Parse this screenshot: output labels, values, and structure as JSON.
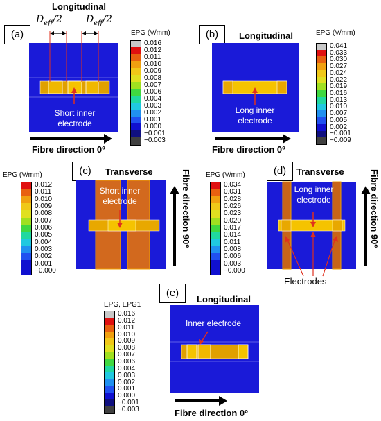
{
  "panels": [
    {
      "id": "a",
      "label": "(a)",
      "title": "Longitudinal",
      "annotation": "Short inner electrode",
      "fibre": "Fibre direction 0º",
      "legend_title": "EPG (V/mm)",
      "ticks": [
        "0.016",
        "0.012",
        "0.011",
        "0.010",
        "0.009",
        "0.008",
        "0.007",
        "0.006",
        "0.004",
        "0.003",
        "0.002",
        "0.001",
        "0.000",
        "−0.001",
        "−0.003"
      ]
    },
    {
      "id": "b",
      "label": "(b)",
      "title": "Longitudinal",
      "annotation": "Long inner electrode",
      "fibre": "Fibre direction 0º",
      "legend_title": "EPG (V/mm)",
      "ticks": [
        "0.041",
        "0.033",
        "0.030",
        "0.027",
        "0.024",
        "0.022",
        "0.019",
        "0.016",
        "0.013",
        "0.010",
        "0.007",
        "0.005",
        "0.002",
        "−0.001",
        "−0.009"
      ]
    },
    {
      "id": "c",
      "label": "(c)",
      "title": "Transverse",
      "annotation": "Short inner electrode",
      "fibre": "Fibre direction 90º",
      "legend_title": "EPG (V/mm)",
      "ticks": [
        "0.012",
        "0.011",
        "0.010",
        "0.009",
        "0.008",
        "0.007",
        "0.006",
        "0.005",
        "0.004",
        "0.003",
        "0.002",
        "0.001",
        "−0.000"
      ]
    },
    {
      "id": "d",
      "label": "(d)",
      "title": "Transverse",
      "annotation": "Long inner electrode",
      "annotation2": "Electrodes",
      "fibre": "Fibre direction 90º",
      "legend_title": "EPG (V/mm)",
      "ticks": [
        "0.034",
        "0.031",
        "0.028",
        "0.026",
        "0.023",
        "0.020",
        "0.017",
        "0.014",
        "0.011",
        "0.008",
        "0.006",
        "0.003",
        "−0.000"
      ]
    },
    {
      "id": "e",
      "label": "(e)",
      "title": "Longitudinal",
      "annotation": "Inner electrode",
      "fibre": "Fibre direction 0º",
      "legend_title": "EPG, EPG1",
      "ticks": [
        "0.016",
        "0.012",
        "0.011",
        "0.010",
        "0.009",
        "0.008",
        "0.007",
        "0.006",
        "0.004",
        "0.003",
        "0.002",
        "0.001",
        "0.000",
        "−0.001",
        "−0.003"
      ]
    }
  ],
  "deff_label": "D",
  "deff_sub": "eff",
  "deff_suffix": "/2",
  "colors": {
    "field_blue": "#1a1ad8",
    "electrode_orange": "#e0a000",
    "electrode_dark": "#c87000",
    "electrode_yellow": "#f5c300",
    "stripe_orange": "#d2691e",
    "annotation_red": "#e0301e"
  },
  "legend_colors_15": [
    "#c8c8c8",
    "#e01010",
    "#e86010",
    "#f0a010",
    "#f0c818",
    "#e0e020",
    "#a0e020",
    "#40d840",
    "#20d8a0",
    "#20c8e0",
    "#2090f0",
    "#2050f0",
    "#1010d0",
    "#101080",
    "#404040"
  ],
  "legend_colors_13": [
    "#e01010",
    "#e86010",
    "#f0a010",
    "#f0c818",
    "#e0e020",
    "#a0e020",
    "#40d840",
    "#20d8a0",
    "#20c8e0",
    "#2090f0",
    "#2050f0",
    "#1010d0",
    "#1010d0"
  ]
}
